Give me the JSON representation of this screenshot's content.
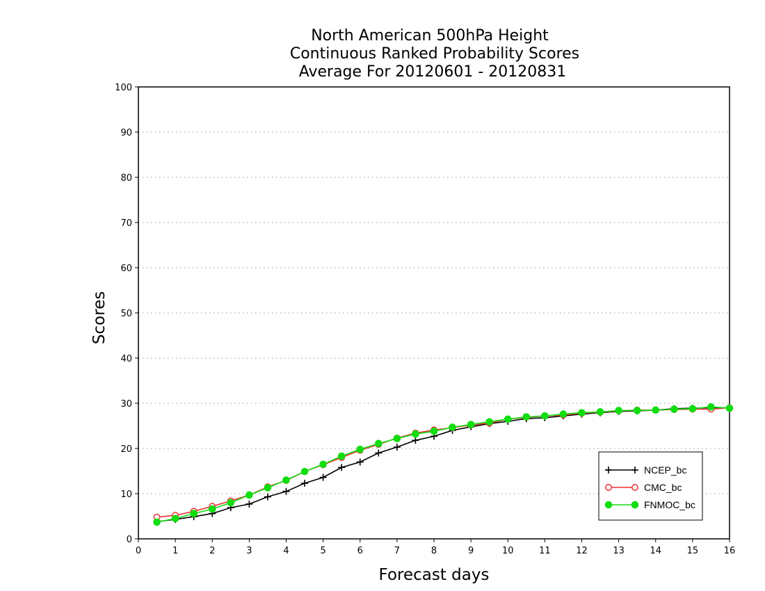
{
  "chart_data": {
    "type": "line",
    "title_lines": [
      "North American 500hPa Height",
      "Continuous Ranked Probability Scores",
      "Average For 20120601 - 20120831"
    ],
    "xlabel": "Forecast days",
    "ylabel": "Scores",
    "xlim": [
      0,
      16
    ],
    "ylim": [
      0,
      100
    ],
    "x_ticks": [
      "0",
      "1",
      "2",
      "3",
      "4",
      "5",
      "6",
      "7",
      "8",
      "9",
      "10",
      "11",
      "12",
      "13",
      "14",
      "15",
      "16"
    ],
    "y_ticks": [
      "0",
      "10",
      "20",
      "30",
      "40",
      "50",
      "60",
      "70",
      "80",
      "90",
      "100"
    ],
    "grid": "horizontal dotted",
    "legend_position": "lower-right",
    "x": [
      0.5,
      1,
      1.5,
      2,
      2.5,
      3,
      3.5,
      4,
      4.5,
      5,
      5.5,
      6,
      6.5,
      7,
      7.5,
      8,
      8.5,
      9,
      9.5,
      10,
      10.5,
      11,
      11.5,
      12,
      12.5,
      13,
      13.5,
      14,
      14.5,
      15,
      15.5,
      16
    ],
    "series": [
      {
        "name": "NCEP_bc",
        "color": "#000000",
        "marker": "plus",
        "values": [
          3.8,
          4.3,
          4.9,
          5.6,
          6.9,
          7.7,
          9.3,
          10.5,
          12.3,
          13.6,
          15.8,
          17.0,
          19.0,
          20.3,
          21.8,
          22.7,
          24.0,
          24.8,
          25.5,
          26.0,
          26.6,
          26.8,
          27.2,
          27.6,
          27.9,
          28.2,
          28.3,
          28.5,
          28.8,
          28.9,
          29.0,
          29.0
        ]
      },
      {
        "name": "CMC_bc",
        "color": "#e83030",
        "marker": "open-circle",
        "values": [
          4.8,
          5.2,
          6.1,
          7.2,
          8.4,
          9.7,
          11.5,
          12.9,
          14.9,
          16.4,
          18.0,
          19.6,
          20.9,
          22.3,
          23.4,
          24.1,
          24.6,
          25.2,
          25.6,
          26.5,
          26.9,
          27.2,
          27.4,
          27.8,
          28.0,
          28.3,
          28.5,
          28.5,
          28.6,
          28.7,
          28.7,
          29.0
        ]
      },
      {
        "name": "FNMOC_bc",
        "color": "#11dd11",
        "marker": "filled-circle",
        "values": [
          3.7,
          4.5,
          5.6,
          6.6,
          8.0,
          9.7,
          11.3,
          13.0,
          14.9,
          16.5,
          18.3,
          19.8,
          21.1,
          22.2,
          23.2,
          23.8,
          24.7,
          25.3,
          25.9,
          26.5,
          27.0,
          27.2,
          27.6,
          27.9,
          28.1,
          28.4,
          28.4,
          28.5,
          28.7,
          28.8,
          29.2,
          28.9
        ]
      }
    ]
  }
}
